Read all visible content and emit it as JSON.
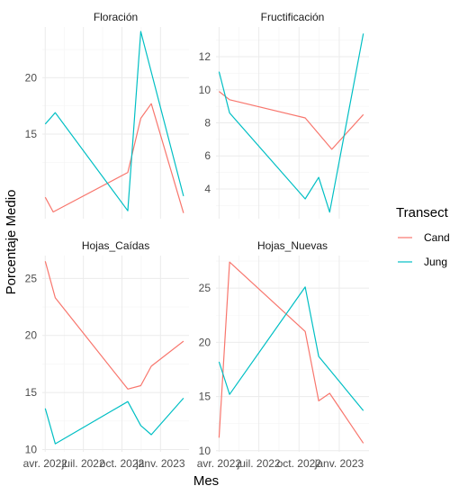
{
  "chart_data": {
    "type": "line",
    "xlabel": "Mes",
    "ylabel": "Porcentaje Medio",
    "legend": {
      "title": "Transect",
      "placement": "right",
      "entries": [
        {
          "label": "Cand",
          "color": "#F8766D"
        },
        {
          "label": "Jung",
          "color": "#00BFC4"
        }
      ]
    },
    "x_ticks": [
      {
        "date": "2022-04-01",
        "label": "avr. 2022"
      },
      {
        "date": "2022-07-01",
        "label": "juil. 2022"
      },
      {
        "date": "2022-10-01",
        "label": "oct. 2022"
      },
      {
        "date": "2023-01-01",
        "label": "janv. 2023"
      }
    ],
    "xlim": [
      "2022-03-25",
      "2023-03-10"
    ],
    "grid": true,
    "series_colors": {
      "Cand": "#F8766D",
      "Jung": "#00BFC4"
    },
    "facets": [
      {
        "name": "Floración",
        "ylim": [
          7.5,
          24.5
        ],
        "y_ticks": [
          15,
          20
        ],
        "series": [
          {
            "name": "Cand",
            "x": [
              "2022-04-01",
              "2022-04-20",
              "2022-10-15",
              "2022-11-15",
              "2022-12-10",
              "2023-02-25"
            ],
            "values": [
              9.4,
              8.1,
              11.6,
              16.4,
              17.7,
              8.0
            ]
          },
          {
            "name": "Jung",
            "x": [
              "2022-04-01",
              "2022-04-25",
              "2022-10-15",
              "2022-11-15",
              "2023-02-25"
            ],
            "values": [
              15.9,
              16.9,
              8.2,
              24.1,
              9.5
            ]
          }
        ]
      },
      {
        "name": "Fructificación",
        "ylim": [
          2.2,
          13.8
        ],
        "y_ticks": [
          4,
          6,
          8,
          10,
          12
        ],
        "series": [
          {
            "name": "Cand",
            "x": [
              "2022-04-01",
              "2022-04-25",
              "2022-10-15",
              "2022-12-15",
              "2023-02-25"
            ],
            "values": [
              9.9,
              9.4,
              8.3,
              6.4,
              8.5
            ]
          },
          {
            "name": "Jung",
            "x": [
              "2022-04-01",
              "2022-04-25",
              "2022-10-15",
              "2022-11-15",
              "2022-12-10",
              "2023-02-25"
            ],
            "values": [
              11.1,
              8.6,
              3.4,
              4.7,
              2.6,
              13.4
            ]
          }
        ]
      },
      {
        "name": "Hojas_Caídas",
        "ylim": [
          9.8,
          27.0
        ],
        "y_ticks": [
          10,
          15,
          20,
          25
        ],
        "series": [
          {
            "name": "Cand",
            "x": [
              "2022-04-01",
              "2022-04-25",
              "2022-10-15",
              "2022-11-15",
              "2022-12-10",
              "2023-02-25"
            ],
            "values": [
              26.5,
              23.3,
              15.3,
              15.6,
              17.3,
              19.5
            ]
          },
          {
            "name": "Jung",
            "x": [
              "2022-04-01",
              "2022-04-25",
              "2022-10-15",
              "2022-11-15",
              "2022-12-10",
              "2023-02-25"
            ],
            "values": [
              13.6,
              10.5,
              14.2,
              12.1,
              11.3,
              14.5
            ]
          }
        ]
      },
      {
        "name": "Hojas_Nuevas",
        "ylim": [
          9.9,
          28.0
        ],
        "y_ticks": [
          10,
          15,
          20,
          25
        ],
        "series": [
          {
            "name": "Cand",
            "x": [
              "2022-04-01",
              "2022-04-25",
              "2022-10-15",
              "2022-11-15",
              "2022-12-10",
              "2023-02-25"
            ],
            "values": [
              11.2,
              27.4,
              21.0,
              14.6,
              15.3,
              10.7
            ]
          },
          {
            "name": "Jung",
            "x": [
              "2022-04-01",
              "2022-04-25",
              "2022-10-15",
              "2022-11-15",
              "2023-02-25"
            ],
            "values": [
              18.2,
              15.2,
              25.1,
              18.7,
              13.7
            ]
          }
        ]
      }
    ]
  }
}
